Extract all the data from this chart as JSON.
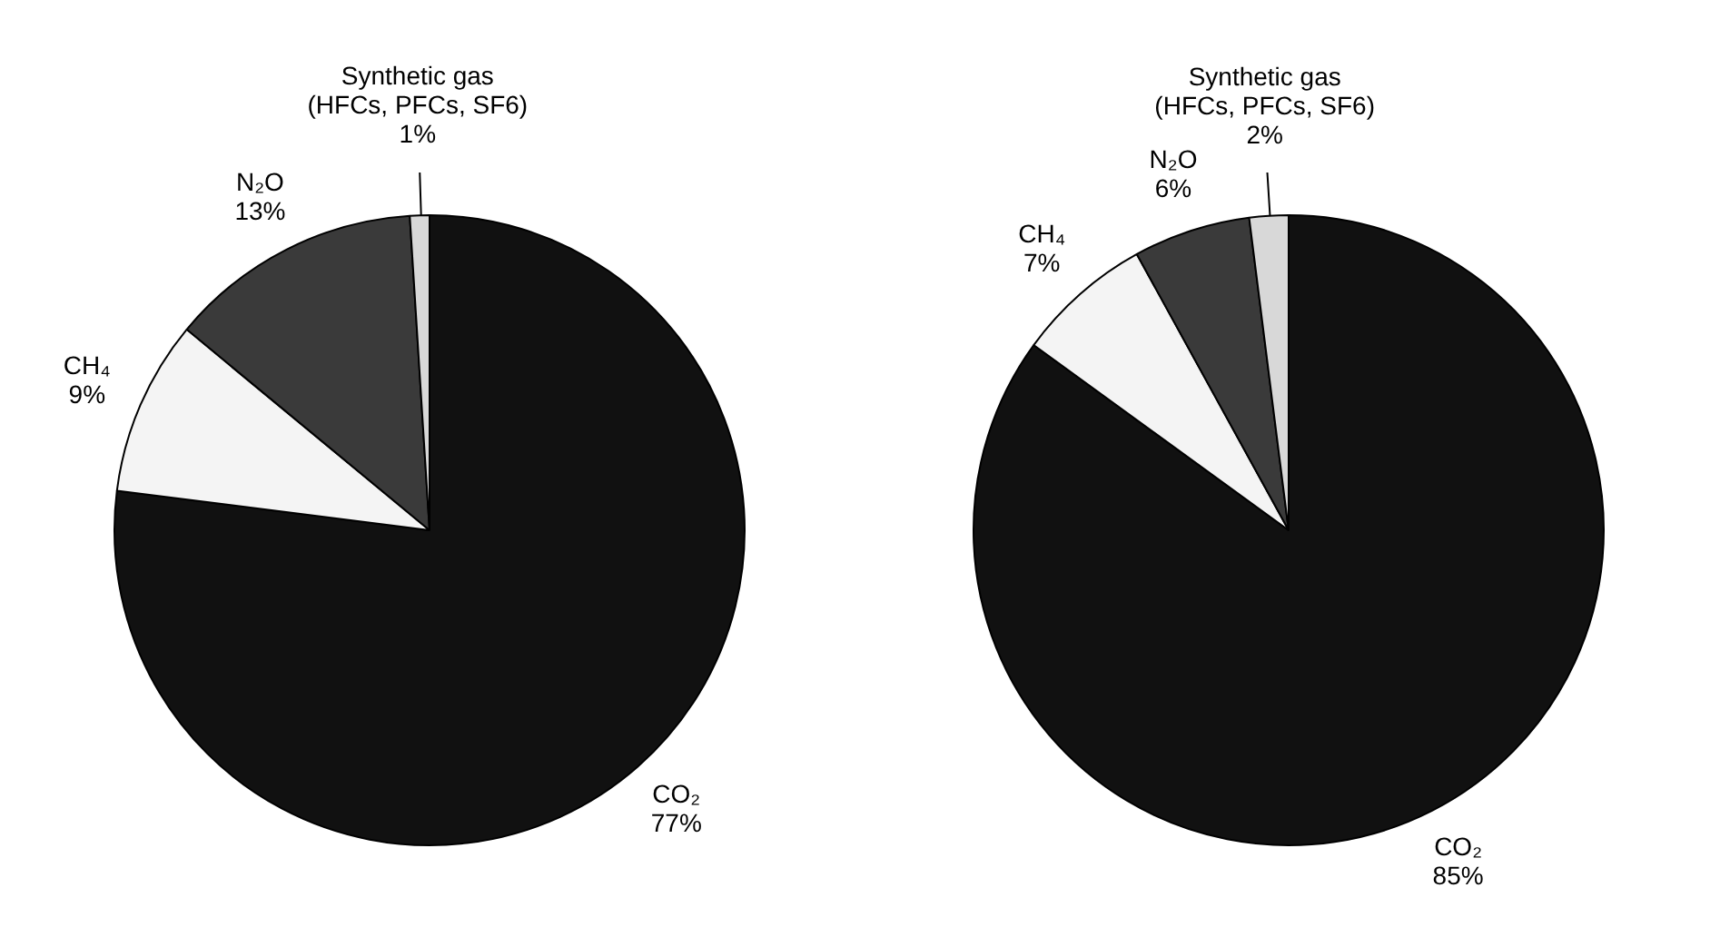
{
  "chart_data": [
    {
      "type": "pie",
      "categories": [
        "CO₂",
        "CH₄",
        "N₂O",
        "Synthetic gas\n(HFCs, PFCs, SF6)"
      ],
      "values": [
        77,
        9,
        13,
        1
      ],
      "value_labels": [
        "77%",
        "9%",
        "13%",
        "1%"
      ],
      "colors": [
        "#111111",
        "#f4f4f4",
        "#3a3a3a",
        "#d8d8d8"
      ],
      "legend": false
    },
    {
      "type": "pie",
      "categories": [
        "CO₂",
        "CH₄",
        "N₂O",
        "Synthetic gas\n(HFCs, PFCs, SF6)"
      ],
      "values": [
        85,
        7,
        6,
        2
      ],
      "value_labels": [
        "85%",
        "7%",
        "6%",
        "2%"
      ],
      "colors": [
        "#111111",
        "#f4f4f4",
        "#3a3a3a",
        "#d8d8d8"
      ],
      "legend": false
    }
  ]
}
